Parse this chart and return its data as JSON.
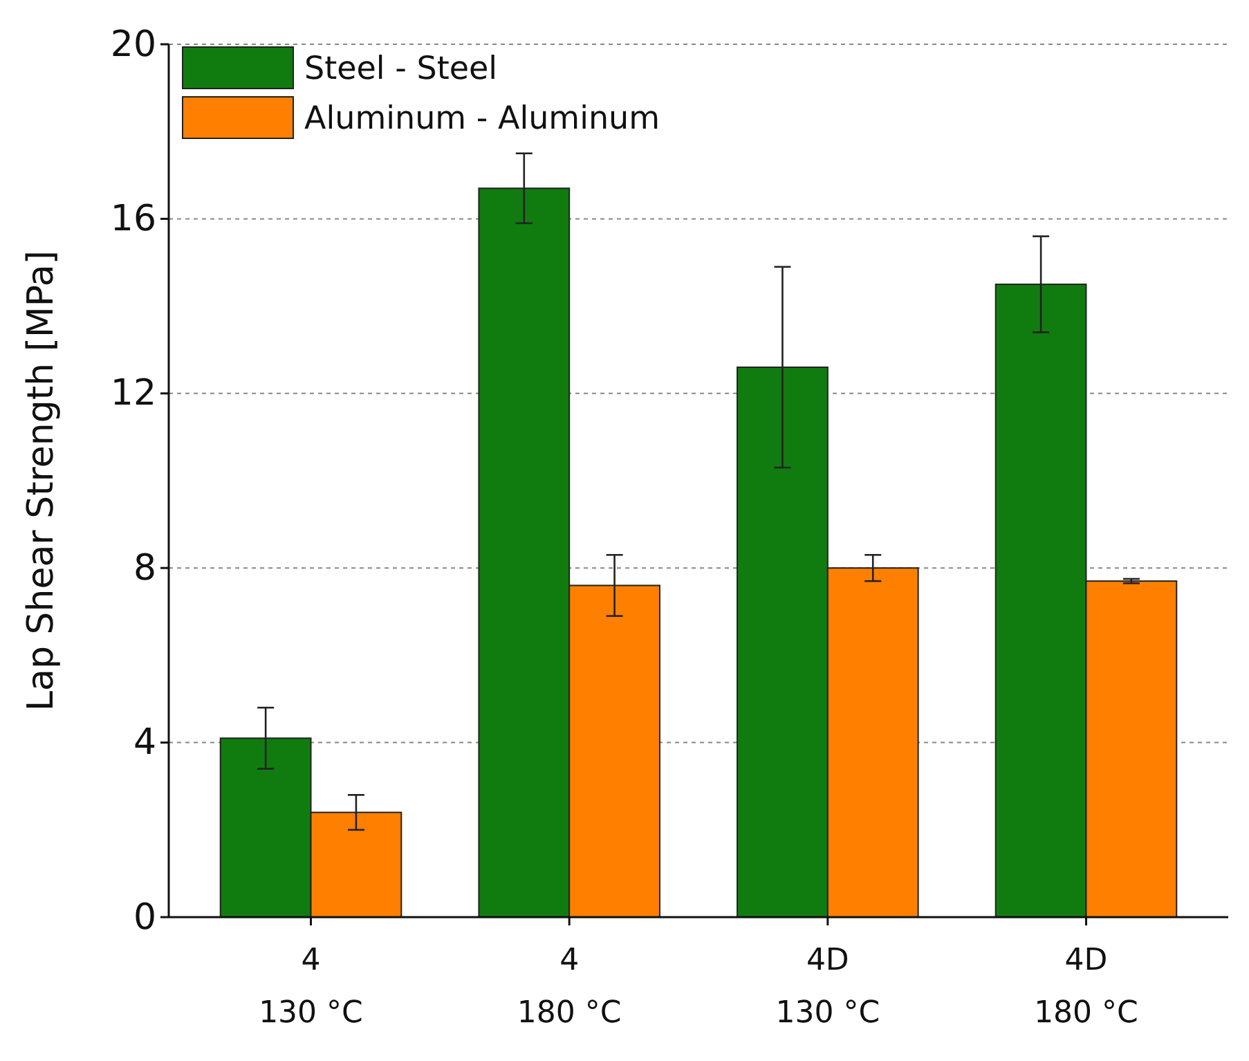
{
  "chart_data": {
    "type": "bar",
    "ylabel": "Lap Shear Strength [MPa]",
    "categories": [
      "4\n130 °C",
      "4\n180 °C",
      "4D\n130 °C",
      "4D\n180 °C"
    ],
    "series": [
      {
        "name": "Steel - Steel",
        "color": "#107c10",
        "values": [
          4.1,
          16.7,
          12.6,
          14.5
        ],
        "errors": [
          0.7,
          0.8,
          2.3,
          1.1
        ]
      },
      {
        "name": "Aluminum - Aluminum",
        "color": "#ff8000",
        "values": [
          2.4,
          7.6,
          8.0,
          7.7
        ],
        "errors": [
          0.4,
          0.7,
          0.3,
          0.05
        ]
      }
    ],
    "ylim": [
      0,
      20
    ],
    "yticks": [
      0,
      4,
      8,
      12,
      16,
      20
    ],
    "grid": "y",
    "legend": "top left"
  }
}
